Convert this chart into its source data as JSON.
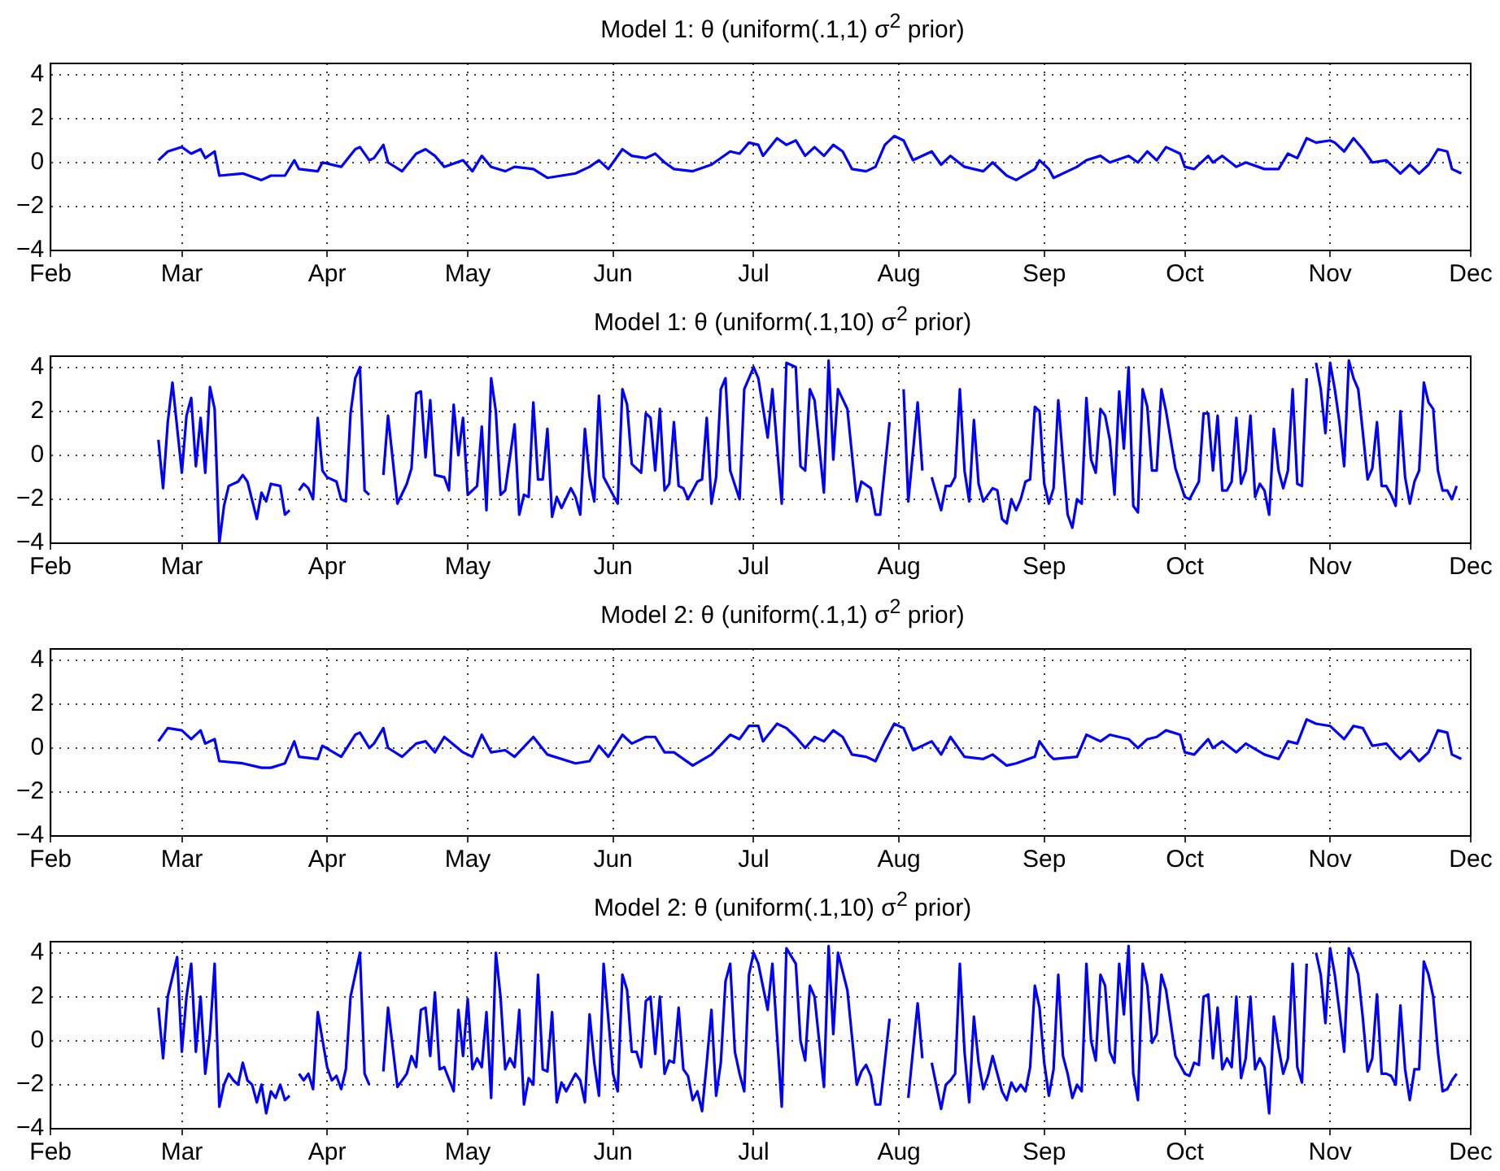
{
  "chart_data": [
    {
      "type": "line",
      "title": "Model 1: θ (uniform(.1,1) σ$^{2}$ prior)",
      "xlim": [
        "--02-01",
        "--12-01"
      ],
      "xticks": [
        {
          "value": "--02-01",
          "label": "Feb"
        },
        {
          "value": "--03-01",
          "label": "Mar"
        },
        {
          "value": "--04-01",
          "label": "Apr"
        },
        {
          "value": "--05-01",
          "label": "May"
        },
        {
          "value": "--06-01",
          "label": "Jun"
        },
        {
          "value": "--07-01",
          "label": "Jul"
        },
        {
          "value": "--08-01",
          "label": "Aug"
        },
        {
          "value": "--09-01",
          "label": "Sep"
        },
        {
          "value": "--10-01",
          "label": "Oct"
        },
        {
          "value": "--11-01",
          "label": "Nov"
        },
        {
          "value": "--12-01",
          "label": "Dec"
        }
      ],
      "ylim": [
        -4,
        4.5
      ],
      "yticks": [
        -4,
        -2,
        0,
        2,
        4
      ],
      "grid": true,
      "series": [
        {
          "color": "#0000ff",
          "x": [
            "--02-24",
            "--02-26",
            "--03-01",
            "--03-03",
            "--03-05",
            "--03-06",
            "--03-08",
            "--03-09",
            "--03-14",
            "--03-18",
            "--03-20",
            "--03-23",
            "--03-25",
            "--03-26",
            "--03-30",
            "--03-31",
            "--04-04",
            "--04-07",
            "--04-08",
            "--04-10",
            "--04-11",
            "--04-13",
            "--04-14",
            "--04-17",
            "--04-20",
            "--04-22",
            "--04-24",
            "--04-26",
            "--04-30",
            "--05-02",
            "--05-04",
            "--05-06",
            "--05-09",
            "--05-11",
            "--05-15",
            "--05-18",
            "--05-24",
            "--05-27",
            "--05-29",
            "--05-31",
            "--06-03",
            "--06-05",
            "--06-08",
            "--06-10",
            "--06-12",
            "--06-14",
            "--06-18",
            "--06-22",
            "--06-26",
            "--06-28",
            "--06-30",
            "--07-02",
            "--07-03",
            "--07-06",
            "--07-08",
            "--07-10",
            "--07-12",
            "--07-14",
            "--07-16",
            "--07-18",
            "--07-20",
            "--07-22",
            "--07-25",
            "--07-27",
            "--07-29",
            "--07-31",
            "--08-02",
            "--08-04",
            "--08-08",
            "--08-10",
            "--08-12",
            "--08-15",
            "--08-19",
            "--08-21",
            "--08-24",
            "--08-26",
            "--08-30",
            "--08-31",
            "--09-02",
            "--09-03",
            "--09-08",
            "--09-10",
            "--09-13",
            "--09-15",
            "--09-19",
            "--09-21",
            "--09-23",
            "--09-25",
            "--09-27",
            "--09-30",
            "--10-01",
            "--10-03",
            "--10-06",
            "--10-07",
            "--10-09",
            "--10-12",
            "--10-14",
            "--10-18",
            "--10-21",
            "--10-23",
            "--10-25",
            "--10-27",
            "--10-29",
            "--11-01",
            "--11-02",
            "--11-04",
            "--11-06",
            "--11-08",
            "--11-10",
            "--11-13",
            "--11-15",
            "--11-16",
            "--11-18",
            "--11-20",
            "--11-22",
            "--11-24",
            "--11-26",
            "--11-27",
            "--11-29"
          ],
          "values": [
            0.1,
            0.5,
            0.7,
            0.4,
            0.6,
            0.2,
            0.5,
            -0.6,
            -0.5,
            -0.8,
            -0.6,
            -0.6,
            0.1,
            -0.3,
            -0.4,
            0.0,
            -0.2,
            0.6,
            0.7,
            0.1,
            0.2,
            0.8,
            0.0,
            -0.4,
            0.4,
            0.6,
            0.3,
            -0.2,
            0.1,
            -0.4,
            0.3,
            -0.2,
            -0.4,
            -0.2,
            -0.3,
            -0.7,
            -0.5,
            -0.2,
            0.1,
            -0.3,
            0.6,
            0.3,
            0.2,
            0.4,
            0.0,
            -0.3,
            -0.4,
            -0.1,
            0.5,
            0.4,
            0.9,
            0.8,
            0.3,
            1.1,
            0.8,
            1.0,
            0.3,
            0.7,
            0.3,
            0.8,
            0.5,
            -0.3,
            -0.4,
            -0.2,
            0.8,
            1.2,
            1.0,
            0.1,
            0.5,
            -0.1,
            0.3,
            -0.2,
            -0.4,
            0.0,
            -0.6,
            -0.8,
            -0.3,
            0.1,
            -0.3,
            -0.7,
            -0.2,
            0.1,
            0.3,
            0.0,
            0.3,
            0.0,
            0.5,
            0.1,
            0.7,
            0.4,
            -0.2,
            -0.3,
            0.3,
            0.0,
            0.3,
            -0.2,
            0.0,
            -0.3,
            -0.3,
            0.4,
            0.2,
            1.1,
            0.9,
            1.0,
            0.9,
            0.5,
            1.1,
            0.6,
            0.0,
            0.1,
            -0.3,
            -0.5,
            -0.1,
            -0.5,
            -0.1,
            0.6,
            0.5,
            -0.3,
            -0.5
          ]
        }
      ]
    },
    {
      "type": "line",
      "title": "Model 1: θ (uniform(.1,10) σ$^{2}$ prior)",
      "xlim": [
        "--02-01",
        "--12-01"
      ],
      "xticks": [
        {
          "value": "--02-01",
          "label": "Feb"
        },
        {
          "value": "--03-01",
          "label": "Mar"
        },
        {
          "value": "--04-01",
          "label": "Apr"
        },
        {
          "value": "--05-01",
          "label": "May"
        },
        {
          "value": "--06-01",
          "label": "Jun"
        },
        {
          "value": "--07-01",
          "label": "Jul"
        },
        {
          "value": "--08-01",
          "label": "Aug"
        },
        {
          "value": "--09-01",
          "label": "Sep"
        },
        {
          "value": "--10-01",
          "label": "Oct"
        },
        {
          "value": "--11-01",
          "label": "Nov"
        },
        {
          "value": "--12-01",
          "label": "Dec"
        }
      ],
      "ylim": [
        -4,
        4.5
      ],
      "yticks": [
        -4,
        -2,
        0,
        2,
        4
      ],
      "grid": true,
      "series": [
        {
          "color": "#0000ff",
          "x": [
            "--02-24",
            "--02-25",
            "--02-26",
            "--02-27",
            "--03-01",
            "--03-02",
            "--03-03",
            "--03-04",
            "--03-05",
            "--03-06",
            "--03-07",
            "--03-08",
            "--03-09",
            "--03-10",
            "--03-11",
            "--03-13",
            "--03-14",
            "--03-15",
            "--03-17",
            "--03-18",
            "--03-19",
            "--03-20",
            "--03-22",
            "--03-23",
            "--03-24",
            "--03-25",
            "--03-26",
            "--03-27",
            "--03-28",
            "--03-29",
            "--03-30",
            "--03-31",
            "--04-01",
            "--04-03",
            "--04-04",
            "--04-05",
            "--04-06",
            "--04-07",
            "--04-08",
            "--04-09",
            "--04-10",
            "--04-12",
            "--04-13",
            "--04-14",
            "--04-16",
            "--04-18",
            "--04-19",
            "--04-20",
            "--04-21",
            "--04-22",
            "--04-23",
            "--04-24",
            "--04-26",
            "--04-27",
            "--04-28",
            "--04-29",
            "--04-30",
            "--05-01",
            "--05-03",
            "--05-04",
            "--05-05",
            "--05-06",
            "--05-07",
            "--05-08",
            "--05-09",
            "--05-11",
            "--05-12",
            "--05-13",
            "--05-14",
            "--05-15",
            "--05-16",
            "--05-17",
            "--05-18",
            "--05-19",
            "--05-20",
            "--05-21",
            "--05-23",
            "--05-24",
            "--05-25",
            "--05-26",
            "--05-27",
            "--05-28",
            "--05-29",
            "--05-30",
            "--06-01",
            "--06-02",
            "--06-03",
            "--06-04",
            "--06-05",
            "--06-07",
            "--06-08",
            "--06-09",
            "--06-10",
            "--06-11",
            "--06-12",
            "--06-13",
            "--06-14",
            "--06-15",
            "--06-16",
            "--06-17",
            "--06-19",
            "--06-20",
            "--06-21",
            "--06-22",
            "--06-23",
            "--06-24",
            "--06-25",
            "--06-26",
            "--06-28",
            "--06-29",
            "--07-01",
            "--07-02",
            "--07-04",
            "--07-05",
            "--07-07",
            "--07-08",
            "--07-10",
            "--07-11",
            "--07-12",
            "--07-13",
            "--07-14",
            "--07-16",
            "--07-17",
            "--07-18",
            "--07-19",
            "--07-21",
            "--07-23",
            "--07-24",
            "--07-26",
            "--07-27",
            "--07-28",
            "--07-30",
            "--07-31",
            "--08-01",
            "--08-02",
            "--08-03",
            "--08-05",
            "--08-06",
            "--08-07",
            "--08-08",
            "--08-10",
            "--08-11",
            "--08-12",
            "--08-13",
            "--08-14",
            "--08-15",
            "--08-16",
            "--08-17",
            "--08-18",
            "--08-19",
            "--08-21",
            "--08-22",
            "--08-23",
            "--08-24",
            "--08-25",
            "--08-26",
            "--08-27",
            "--08-28",
            "--08-29",
            "--08-30",
            "--08-31",
            "--09-01",
            "--09-02",
            "--09-03",
            "--09-04",
            "--09-05",
            "--09-06",
            "--09-07",
            "--09-08",
            "--09-09",
            "--09-10",
            "--09-11",
            "--09-12",
            "--09-13",
            "--09-14",
            "--09-15",
            "--09-16",
            "--09-17",
            "--09-18",
            "--09-19",
            "--09-20",
            "--09-21",
            "--09-22",
            "--09-23",
            "--09-24",
            "--09-25",
            "--09-26",
            "--09-27",
            "--09-29",
            "--10-01",
            "--10-02",
            "--10-03",
            "--10-04",
            "--10-05",
            "--10-06",
            "--10-07",
            "--10-08",
            "--10-09",
            "--10-10",
            "--10-11",
            "--10-12",
            "--10-13",
            "--10-14",
            "--10-15",
            "--10-16",
            "--10-17",
            "--10-18",
            "--10-19",
            "--10-20",
            "--10-21",
            "--10-22",
            "--10-23",
            "--10-24",
            "--10-25",
            "--10-26",
            "--10-27",
            "--10-28",
            "--10-29",
            "--10-30",
            "--10-31",
            "--11-01",
            "--11-02",
            "--11-03",
            "--11-04",
            "--11-05",
            "--11-06",
            "--11-07",
            "--11-08",
            "--11-09",
            "--11-10",
            "--11-11",
            "--11-12",
            "--11-13",
            "--11-14",
            "--11-15",
            "--11-16",
            "--11-17",
            "--11-18",
            "--11-19",
            "--11-20",
            "--11-21",
            "--11-22",
            "--11-23",
            "--11-24",
            "--11-25",
            "--11-26",
            "--11-27",
            "--11-28"
          ],
          "values": [
            0.7,
            -1.5,
            1.5,
            3.3,
            -0.8,
            1.8,
            2.6,
            -0.5,
            1.7,
            -0.8,
            3.1,
            2.1,
            -4.0,
            -2.3,
            -1.4,
            -1.2,
            -0.9,
            -1.2,
            -2.9,
            -1.7,
            -2.1,
            -1.3,
            -1.4,
            -2.7,
            -2.5,
            null,
            -1.6,
            -1.3,
            -1.5,
            -2.0,
            1.7,
            -0.7,
            -1.0,
            -1.2,
            -2.0,
            -2.1,
            1.9,
            3.5,
            4.0,
            -1.6,
            -1.8,
            null,
            -0.9,
            1.8,
            -2.2,
            -1.3,
            -0.6,
            2.8,
            2.9,
            -0.1,
            2.5,
            -0.9,
            -1.0,
            -1.6,
            2.3,
            0.0,
            1.7,
            -1.8,
            -1.4,
            1.3,
            -2.5,
            3.5,
            2.0,
            -1.8,
            -1.6,
            1.4,
            -2.7,
            -1.8,
            -1.9,
            2.4,
            -1.1,
            -1.1,
            1.2,
            -2.8,
            -1.9,
            -2.4,
            -1.5,
            -1.9,
            -2.7,
            1.2,
            -1.0,
            -2.1,
            2.7,
            -1.0,
            -1.8,
            -2.2,
            3.0,
            2.3,
            -0.4,
            -0.8,
            1.9,
            1.7,
            -0.7,
            2.1,
            -1.6,
            -1.3,
            1.5,
            -1.4,
            -1.5,
            -2.0,
            -1.2,
            -1.1,
            1.7,
            -2.2,
            -1.0,
            3.0,
            3.5,
            -0.7,
            -2.0,
            3.0,
            4.0,
            3.5,
            0.8,
            3.0,
            -2.2,
            4.2,
            4.0,
            -0.5,
            -0.7,
            3.0,
            2.5,
            -1.7,
            4.3,
            -0.2,
            3.0,
            2.1,
            -2.1,
            -1.2,
            -1.5,
            -2.7,
            -2.7,
            1.5,
            null,
            null,
            3.0,
            -2.1,
            2.4,
            -0.7,
            null,
            -1.0,
            -2.5,
            -1.4,
            -1.4,
            -1.0,
            3.0,
            -0.7,
            -2.1,
            1.6,
            -1.3,
            -2.1,
            -1.5,
            -1.6,
            -2.9,
            -3.1,
            -2.0,
            -2.5,
            -2.0,
            -1.2,
            -1.1,
            2.2,
            2.0,
            -1.3,
            -2.2,
            -1.5,
            2.5,
            -0.2,
            -2.7,
            -3.3,
            -2.0,
            -2.2,
            2.6,
            -0.2,
            -0.8,
            2.1,
            1.8,
            0.7,
            -1.8,
            2.9,
            0.3,
            4.0,
            -2.3,
            -2.6,
            3.0,
            2.2,
            -0.7,
            -0.7,
            3.0,
            2.0,
            -0.6,
            -1.9,
            -2.0,
            -1.6,
            -1.2,
            1.9,
            1.9,
            -0.7,
            1.8,
            -1.6,
            -1.6,
            -1.2,
            1.7,
            -1.3,
            -0.7,
            1.8,
            -1.9,
            -1.3,
            -1.6,
            -2.7,
            1.2,
            -0.7,
            -1.5,
            -0.7,
            3.0,
            -1.3,
            -1.4,
            3.5,
            null,
            4.2,
            3.0,
            1.0,
            4.2,
            3.0,
            1.5,
            -0.5,
            4.3,
            3.5,
            3.0,
            1.0,
            -1.1,
            -0.6,
            1.5,
            -1.4,
            -1.4,
            -1.8,
            -2.3,
            2.0,
            -1.0,
            -2.2,
            -1.2,
            -0.7,
            3.3,
            2.4,
            2.1,
            -0.7,
            -1.6,
            -1.6,
            -2.0,
            -1.4
          ]
        }
      ]
    },
    {
      "type": "line",
      "title": "Model 2: θ (uniform(.1,1) σ$^{2}$ prior)",
      "xlim": [
        "--02-01",
        "--12-01"
      ],
      "xticks": [
        {
          "value": "--02-01",
          "label": "Feb"
        },
        {
          "value": "--03-01",
          "label": "Mar"
        },
        {
          "value": "--04-01",
          "label": "Apr"
        },
        {
          "value": "--05-01",
          "label": "May"
        },
        {
          "value": "--06-01",
          "label": "Jun"
        },
        {
          "value": "--07-01",
          "label": "Jul"
        },
        {
          "value": "--08-01",
          "label": "Aug"
        },
        {
          "value": "--09-01",
          "label": "Sep"
        },
        {
          "value": "--10-01",
          "label": "Oct"
        },
        {
          "value": "--11-01",
          "label": "Nov"
        },
        {
          "value": "--12-01",
          "label": "Dec"
        }
      ],
      "ylim": [
        -4,
        4.5
      ],
      "yticks": [
        -4,
        -2,
        0,
        2,
        4
      ],
      "grid": true,
      "series": [
        {
          "color": "#0000ff",
          "x": [
            "--02-24",
            "--02-26",
            "--03-01",
            "--03-03",
            "--03-05",
            "--03-06",
            "--03-08",
            "--03-09",
            "--03-14",
            "--03-18",
            "--03-20",
            "--03-23",
            "--03-25",
            "--03-26",
            "--03-30",
            "--03-31",
            "--04-04",
            "--04-07",
            "--04-08",
            "--04-10",
            "--04-11",
            "--04-13",
            "--04-14",
            "--04-17",
            "--04-20",
            "--04-22",
            "--04-24",
            "--04-26",
            "--04-30",
            "--05-02",
            "--05-04",
            "--05-06",
            "--05-09",
            "--05-11",
            "--05-15",
            "--05-18",
            "--05-24",
            "--05-27",
            "--05-29",
            "--05-31",
            "--06-03",
            "--06-05",
            "--06-08",
            "--06-10",
            "--06-12",
            "--06-14",
            "--06-18",
            "--06-22",
            "--06-26",
            "--06-28",
            "--06-30",
            "--07-02",
            "--07-03",
            "--07-06",
            "--07-08",
            "--07-10",
            "--07-12",
            "--07-14",
            "--07-16",
            "--07-18",
            "--07-20",
            "--07-22",
            "--07-25",
            "--07-27",
            "--07-29",
            "--07-31",
            "--08-02",
            "--08-04",
            "--08-08",
            "--08-10",
            "--08-12",
            "--08-15",
            "--08-19",
            "--08-21",
            "--08-24",
            "--08-26",
            "--08-30",
            "--08-31",
            "--09-02",
            "--09-03",
            "--09-08",
            "--09-10",
            "--09-13",
            "--09-15",
            "--09-19",
            "--09-21",
            "--09-23",
            "--09-25",
            "--09-27",
            "--09-30",
            "--10-01",
            "--10-03",
            "--10-06",
            "--10-07",
            "--10-09",
            "--10-12",
            "--10-14",
            "--10-18",
            "--10-21",
            "--10-23",
            "--10-25",
            "--10-27",
            "--10-29",
            "--11-01",
            "--11-02",
            "--11-04",
            "--11-06",
            "--11-08",
            "--11-10",
            "--11-13",
            "--11-15",
            "--11-16",
            "--11-18",
            "--11-20",
            "--11-22",
            "--11-24",
            "--11-26",
            "--11-27",
            "--11-29"
          ],
          "values": [
            0.3,
            0.9,
            0.8,
            0.4,
            0.8,
            0.2,
            0.4,
            -0.6,
            -0.7,
            -0.9,
            -0.9,
            -0.7,
            0.3,
            -0.4,
            -0.5,
            0.1,
            -0.4,
            0.6,
            0.7,
            0.0,
            0.2,
            0.9,
            0.0,
            -0.4,
            0.2,
            0.3,
            -0.2,
            0.5,
            -0.2,
            -0.4,
            0.6,
            -0.2,
            -0.1,
            -0.4,
            0.5,
            -0.3,
            -0.7,
            -0.6,
            0.1,
            -0.4,
            0.6,
            0.2,
            0.5,
            0.5,
            -0.2,
            -0.2,
            -0.8,
            -0.3,
            0.6,
            0.4,
            1.0,
            1.0,
            0.3,
            1.1,
            0.9,
            0.5,
            0.0,
            0.5,
            0.3,
            0.8,
            0.5,
            -0.3,
            -0.4,
            -0.6,
            0.3,
            1.1,
            0.9,
            -0.1,
            0.3,
            -0.3,
            0.5,
            -0.4,
            -0.5,
            -0.3,
            -0.8,
            -0.7,
            -0.4,
            0.3,
            -0.3,
            -0.5,
            -0.4,
            0.6,
            0.3,
            0.6,
            0.4,
            0.0,
            0.4,
            0.5,
            0.8,
            0.6,
            -0.2,
            -0.3,
            0.4,
            0.0,
            0.3,
            -0.2,
            0.2,
            -0.3,
            -0.5,
            0.3,
            0.2,
            1.3,
            1.1,
            1.0,
            0.8,
            0.4,
            1.0,
            0.9,
            0.1,
            0.2,
            -0.3,
            -0.5,
            -0.1,
            -0.6,
            -0.2,
            0.8,
            0.7,
            -0.3,
            -0.5
          ]
        }
      ]
    },
    {
      "type": "line",
      "title": "Model 2: θ (uniform(.1,10) σ$^{2}$ prior)",
      "xlim": [
        "--02-01",
        "--12-01"
      ],
      "xticks": [
        {
          "value": "--02-01",
          "label": "Feb"
        },
        {
          "value": "--03-01",
          "label": "Mar"
        },
        {
          "value": "--04-01",
          "label": "Apr"
        },
        {
          "value": "--05-01",
          "label": "May"
        },
        {
          "value": "--06-01",
          "label": "Jun"
        },
        {
          "value": "--07-01",
          "label": "Jul"
        },
        {
          "value": "--08-01",
          "label": "Aug"
        },
        {
          "value": "--09-01",
          "label": "Sep"
        },
        {
          "value": "--10-01",
          "label": "Oct"
        },
        {
          "value": "--11-01",
          "label": "Nov"
        },
        {
          "value": "--12-01",
          "label": "Dec"
        }
      ],
      "ylim": [
        -4,
        4.5
      ],
      "yticks": [
        -4,
        -2,
        0,
        2,
        4
      ],
      "grid": true,
      "series": [
        {
          "color": "#0000ff",
          "x": [
            "--02-24",
            "--02-25",
            "--02-26",
            "--02-28",
            "--03-01",
            "--03-02",
            "--03-03",
            "--03-04",
            "--03-05",
            "--03-06",
            "--03-07",
            "--03-08",
            "--03-09",
            "--03-10",
            "--03-11",
            "--03-12",
            "--03-13",
            "--03-14",
            "--03-15",
            "--03-16",
            "--03-17",
            "--03-18",
            "--03-19",
            "--03-20",
            "--03-21",
            "--03-22",
            "--03-23",
            "--03-24",
            "--03-25",
            "--03-26",
            "--03-27",
            "--03-28",
            "--03-29",
            "--03-30",
            "--04-01",
            "--04-02",
            "--04-03",
            "--04-04",
            "--04-05",
            "--04-06",
            "--04-07",
            "--04-08",
            "--04-09",
            "--04-10",
            "--04-11",
            "--04-13",
            "--04-14",
            "--04-16",
            "--04-18",
            "--04-19",
            "--04-20",
            "--04-21",
            "--04-22",
            "--04-23",
            "--04-24",
            "--04-25",
            "--04-26",
            "--04-28",
            "--04-29",
            "--04-30",
            "--05-01",
            "--05-02",
            "--05-03",
            "--05-04",
            "--05-05",
            "--05-06",
            "--05-07",
            "--05-08",
            "--05-09",
            "--05-10",
            "--05-11",
            "--05-12",
            "--05-13",
            "--05-14",
            "--05-15",
            "--05-16",
            "--05-17",
            "--05-18",
            "--05-19",
            "--05-20",
            "--05-21",
            "--05-22",
            "--05-24",
            "--05-25",
            "--05-26",
            "--05-27",
            "--05-28",
            "--05-29",
            "--05-30",
            "--06-01",
            "--06-02",
            "--06-03",
            "--06-04",
            "--06-05",
            "--06-06",
            "--06-07",
            "--06-08",
            "--06-09",
            "--06-10",
            "--06-11",
            "--06-12",
            "--06-13",
            "--06-14",
            "--06-15",
            "--06-16",
            "--06-17",
            "--06-18",
            "--06-19",
            "--06-20",
            "--06-21",
            "--06-22",
            "--06-23",
            "--06-24",
            "--06-25",
            "--06-26",
            "--06-27",
            "--06-28",
            "--06-29",
            "--06-30",
            "--07-01",
            "--07-02",
            "--07-04",
            "--07-05",
            "--07-07",
            "--07-08",
            "--07-10",
            "--07-11",
            "--07-12",
            "--07-13",
            "--07-14",
            "--07-16",
            "--07-17",
            "--07-18",
            "--07-19",
            "--07-21",
            "--07-23",
            "--07-24",
            "--07-25",
            "--07-26",
            "--07-27",
            "--07-28",
            "--07-30",
            "--07-31",
            "--08-01",
            "--08-03",
            "--08-05",
            "--08-06",
            "--08-07",
            "--08-08",
            "--08-10",
            "--08-11",
            "--08-12",
            "--08-13",
            "--08-14",
            "--08-15",
            "--08-16",
            "--08-17",
            "--08-18",
            "--08-19",
            "--08-20",
            "--08-21",
            "--08-22",
            "--08-23",
            "--08-24",
            "--08-25",
            "--08-26",
            "--08-27",
            "--08-28",
            "--08-29",
            "--08-30",
            "--08-31",
            "--09-01",
            "--09-02",
            "--09-03",
            "--09-04",
            "--09-05",
            "--09-06",
            "--09-07",
            "--09-08",
            "--09-09",
            "--09-10",
            "--09-11",
            "--09-12",
            "--09-13",
            "--09-14",
            "--09-15",
            "--09-16",
            "--09-17",
            "--09-18",
            "--09-19",
            "--09-20",
            "--09-21",
            "--09-22",
            "--09-23",
            "--09-24",
            "--09-25",
            "--09-26",
            "--09-27",
            "--09-29",
            "--10-01",
            "--10-02",
            "--10-03",
            "--10-04",
            "--10-05",
            "--10-06",
            "--10-07",
            "--10-08",
            "--10-09",
            "--10-10",
            "--10-11",
            "--10-12",
            "--10-13",
            "--10-14",
            "--10-15",
            "--10-16",
            "--10-17",
            "--10-18",
            "--10-19",
            "--10-20",
            "--10-21",
            "--10-22",
            "--10-23",
            "--10-24",
            "--10-25",
            "--10-26",
            "--10-27",
            "--10-28",
            "--10-29",
            "--10-30",
            "--10-31",
            "--11-01",
            "--11-02",
            "--11-03",
            "--11-04",
            "--11-05",
            "--11-06",
            "--11-07",
            "--11-08",
            "--11-09",
            "--11-10",
            "--11-11",
            "--11-12",
            "--11-13",
            "--11-14",
            "--11-15",
            "--11-16",
            "--11-17",
            "--11-18",
            "--11-19",
            "--11-20",
            "--11-21",
            "--11-22",
            "--11-23",
            "--11-24",
            "--11-25",
            "--11-26",
            "--11-27",
            "--11-28"
          ],
          "values": [
            1.5,
            -0.8,
            2.0,
            3.8,
            -0.5,
            2.0,
            3.5,
            -0.5,
            2.0,
            -1.5,
            0.3,
            3.5,
            -3.0,
            -2.0,
            -1.5,
            -1.8,
            -2.0,
            -1.0,
            -1.8,
            -2.0,
            -2.8,
            -2.0,
            -3.3,
            -2.3,
            -2.6,
            -2.0,
            -2.7,
            -2.5,
            null,
            -1.5,
            -1.8,
            -1.5,
            -2.2,
            1.3,
            -1.2,
            -1.8,
            -1.6,
            -2.2,
            -1.3,
            2.0,
            3.0,
            4.0,
            -1.5,
            -2.0,
            null,
            -1.4,
            1.5,
            -2.1,
            -1.5,
            -0.7,
            -1.2,
            1.4,
            1.5,
            -0.7,
            2.2,
            -1.3,
            -1.2,
            -2.3,
            1.4,
            -0.7,
            1.9,
            -1.3,
            -0.8,
            -1.2,
            1.3,
            -2.6,
            4.0,
            2.0,
            -1.3,
            -0.8,
            -1.2,
            1.4,
            -2.9,
            -1.7,
            -2.0,
            3.0,
            -1.3,
            -1.4,
            1.3,
            -2.8,
            -1.9,
            -2.3,
            -1.5,
            -1.8,
            -2.8,
            1.2,
            -1.0,
            -2.5,
            3.5,
            -1.5,
            -2.3,
            3.0,
            2.3,
            -0.5,
            -0.5,
            -1.2,
            1.8,
            2.0,
            -0.6,
            2.0,
            -1.5,
            -0.9,
            -1.0,
            1.5,
            -1.3,
            -1.6,
            -2.7,
            -2.3,
            -3.2,
            -1.0,
            1.4,
            -2.5,
            -1.0,
            2.7,
            3.5,
            -0.5,
            -1.5,
            -2.3,
            3.0,
            4.0,
            3.5,
            1.4,
            3.5,
            -3.0,
            4.2,
            3.5,
            0.0,
            -0.9,
            2.5,
            2.0,
            -2.1,
            4.3,
            0.3,
            4.0,
            2.3,
            -2.0,
            -1.4,
            -1.1,
            -1.6,
            -2.9,
            -2.9,
            1.0,
            null,
            null,
            -2.6,
            1.7,
            -0.8,
            null,
            -1.0,
            -3.1,
            -2.0,
            -1.8,
            -1.5,
            3.5,
            -0.5,
            -2.8,
            1.1,
            -1.0,
            -2.2,
            -1.6,
            -0.7,
            -1.5,
            -2.3,
            -2.7,
            -1.9,
            -2.3,
            -2.0,
            -2.3,
            -1.2,
            2.5,
            1.5,
            -1.0,
            -2.5,
            -1.3,
            3.0,
            -0.7,
            -1.5,
            -2.6,
            -2.0,
            -2.3,
            3.5,
            0.0,
            -0.9,
            3.0,
            2.5,
            -0.5,
            -1.0,
            3.5,
            1.2,
            4.3,
            -1.5,
            -2.7,
            3.5,
            2.5,
            -0.1,
            0.3,
            3.0,
            2.3,
            -0.7,
            -1.5,
            -1.6,
            -1.0,
            -1.1,
            2.0,
            2.1,
            -0.8,
            1.5,
            -1.3,
            -0.8,
            -1.2,
            2.0,
            -1.7,
            -0.8,
            2.0,
            -1.3,
            -0.8,
            -1.2,
            -3.3,
            1.1,
            -0.3,
            -1.5,
            -0.8,
            3.5,
            -1.2,
            -1.9,
            3.5,
            null,
            4.0,
            3.0,
            0.8,
            4.2,
            3.0,
            1.3,
            -0.5,
            4.2,
            3.7,
            3.0,
            1.0,
            -1.4,
            -0.8,
            2.1,
            -1.5,
            -1.5,
            -1.6,
            -2.0,
            1.6,
            -1.3,
            -2.7,
            -1.3,
            -1.3,
            3.6,
            3.0,
            2.0,
            -0.5,
            -2.3,
            -2.2,
            -1.8,
            -1.5
          ]
        }
      ]
    }
  ]
}
